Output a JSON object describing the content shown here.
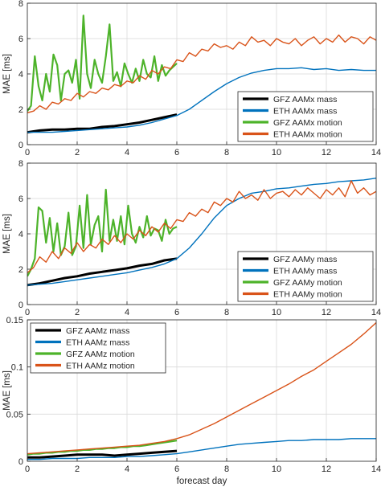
{
  "colors": {
    "gfz_mass": "#000000",
    "eth_mass": "#0072BD",
    "gfz_motion": "#4DB32A",
    "eth_motion": "#D95319",
    "grid": "#d9d9d9",
    "axis": "#262626"
  },
  "chart_data": [
    {
      "type": "line",
      "ylabel": "MAE [ms]",
      "xlabel": "",
      "xlim": [
        0,
        14
      ],
      "ylim": [
        0,
        8
      ],
      "xticks": [
        0,
        2,
        4,
        6,
        8,
        10,
        12,
        14
      ],
      "yticks": [
        0,
        2,
        4,
        6,
        8
      ],
      "grid": true,
      "legend_position": "bottom-right",
      "series": [
        {
          "name": "GFZ AAMx mass",
          "color_key": "gfz_mass",
          "width": 3,
          "x": [
            0,
            0.5,
            1,
            1.5,
            2,
            2.5,
            3,
            3.5,
            4,
            4.5,
            5,
            5.5,
            6
          ],
          "y": [
            0.7,
            0.8,
            0.85,
            0.85,
            0.9,
            0.9,
            1.0,
            1.05,
            1.15,
            1.25,
            1.4,
            1.55,
            1.7
          ]
        },
        {
          "name": "ETH AAMx mass",
          "color_key": "eth_mass",
          "width": 1.4,
          "x": [
            0,
            0.5,
            1,
            1.5,
            2,
            2.5,
            3,
            3.5,
            4,
            4.5,
            5,
            5.5,
            6,
            6.5,
            7,
            7.5,
            8,
            8.5,
            9,
            9.5,
            10,
            10.5,
            11,
            11.5,
            12,
            12.5,
            13,
            13.5,
            14
          ],
          "y": [
            0.7,
            0.7,
            0.7,
            0.75,
            0.8,
            0.85,
            0.9,
            0.95,
            1.0,
            1.1,
            1.25,
            1.45,
            1.65,
            2.0,
            2.5,
            3.0,
            3.45,
            3.8,
            4.05,
            4.2,
            4.3,
            4.3,
            4.35,
            4.25,
            4.3,
            4.2,
            4.25,
            4.2,
            4.2
          ]
        },
        {
          "name": "GFZ AAMx motion",
          "color_key": "gfz_motion",
          "width": 2.2,
          "x": [
            0,
            0.15,
            0.3,
            0.45,
            0.6,
            0.75,
            0.9,
            1.05,
            1.2,
            1.35,
            1.5,
            1.65,
            1.8,
            1.95,
            2.1,
            2.25,
            2.4,
            2.55,
            2.7,
            2.85,
            3.0,
            3.15,
            3.3,
            3.45,
            3.6,
            3.75,
            3.9,
            4.05,
            4.2,
            4.35,
            4.5,
            4.65,
            4.8,
            4.95,
            5.1,
            5.25,
            5.4,
            5.55,
            5.7,
            5.85,
            6.0
          ],
          "y": [
            1.9,
            2.2,
            5.0,
            3.3,
            2.5,
            4.0,
            3.0,
            5.1,
            4.5,
            2.5,
            4.0,
            4.2,
            3.5,
            4.8,
            2.6,
            7.3,
            4.0,
            3.2,
            4.8,
            4.0,
            3.5,
            5.0,
            6.8,
            3.6,
            4.1,
            3.3,
            4.6,
            4.0,
            3.5,
            4.3,
            3.6,
            4.8,
            4.0,
            3.8,
            5.0,
            3.6,
            4.5,
            3.9,
            4.2,
            4.4,
            4.6
          ]
        },
        {
          "name": "ETH AAMx motion",
          "color_key": "eth_motion",
          "width": 1.4,
          "x": [
            0,
            0.25,
            0.5,
            0.75,
            1.0,
            1.25,
            1.5,
            1.75,
            2.0,
            2.25,
            2.5,
            2.75,
            3.0,
            3.25,
            3.5,
            3.75,
            4.0,
            4.25,
            4.5,
            4.75,
            5.0,
            5.25,
            5.5,
            5.75,
            6.0,
            6.25,
            6.5,
            6.75,
            7.0,
            7.25,
            7.5,
            7.75,
            8.0,
            8.25,
            8.5,
            8.75,
            9.0,
            9.25,
            9.5,
            9.75,
            10.0,
            10.25,
            10.5,
            10.75,
            11.0,
            11.25,
            11.5,
            11.75,
            12.0,
            12.25,
            12.5,
            12.75,
            13.0,
            13.25,
            13.5,
            13.75,
            14.0
          ],
          "y": [
            1.8,
            1.9,
            2.2,
            2.0,
            2.4,
            2.3,
            2.6,
            2.5,
            2.9,
            2.7,
            3.0,
            2.9,
            3.2,
            3.1,
            3.4,
            3.3,
            3.6,
            3.5,
            3.9,
            3.7,
            4.2,
            4.0,
            4.4,
            4.3,
            4.8,
            4.7,
            5.2,
            5.0,
            5.4,
            5.3,
            5.7,
            5.5,
            5.6,
            5.4,
            5.8,
            5.6,
            6.1,
            5.8,
            5.9,
            5.6,
            6.0,
            5.8,
            5.7,
            6.0,
            5.6,
            5.9,
            6.1,
            5.7,
            6.0,
            5.8,
            6.2,
            5.8,
            6.1,
            6.0,
            5.7,
            6.1,
            5.9
          ]
        }
      ]
    },
    {
      "type": "line",
      "ylabel": "MAE [ms]",
      "xlabel": "",
      "xlim": [
        0,
        14
      ],
      "ylim": [
        0,
        8
      ],
      "xticks": [
        0,
        2,
        4,
        6,
        8,
        10,
        12,
        14
      ],
      "yticks": [
        0,
        2,
        4,
        6,
        8
      ],
      "grid": true,
      "legend_position": "bottom-right",
      "series": [
        {
          "name": "GFZ AAMy mass",
          "color_key": "gfz_mass",
          "width": 3,
          "x": [
            0,
            0.5,
            1,
            1.5,
            2,
            2.5,
            3,
            3.5,
            4,
            4.5,
            5,
            5.5,
            6
          ],
          "y": [
            1.1,
            1.2,
            1.35,
            1.5,
            1.6,
            1.75,
            1.85,
            1.95,
            2.05,
            2.2,
            2.3,
            2.5,
            2.6
          ]
        },
        {
          "name": "ETH AAMy mass",
          "color_key": "eth_mass",
          "width": 1.4,
          "x": [
            0,
            0.5,
            1,
            1.5,
            2,
            2.5,
            3,
            3.5,
            4,
            4.5,
            5,
            5.5,
            6,
            6.5,
            7,
            7.5,
            8,
            8.5,
            9,
            9.5,
            10,
            10.5,
            11,
            11.5,
            12,
            12.5,
            13,
            13.5,
            14
          ],
          "y": [
            1.1,
            1.15,
            1.2,
            1.3,
            1.4,
            1.5,
            1.6,
            1.7,
            1.8,
            1.95,
            2.1,
            2.3,
            2.6,
            3.2,
            4.0,
            4.9,
            5.6,
            6.0,
            6.3,
            6.4,
            6.55,
            6.6,
            6.7,
            6.8,
            6.85,
            6.95,
            7.0,
            7.05,
            7.15
          ]
        },
        {
          "name": "GFZ AAMy motion",
          "color_key": "gfz_motion",
          "width": 2.2,
          "x": [
            0,
            0.15,
            0.3,
            0.45,
            0.6,
            0.75,
            0.9,
            1.05,
            1.2,
            1.35,
            1.5,
            1.65,
            1.8,
            1.95,
            2.1,
            2.25,
            2.4,
            2.55,
            2.7,
            2.85,
            3.0,
            3.15,
            3.3,
            3.45,
            3.6,
            3.75,
            3.9,
            4.05,
            4.2,
            4.35,
            4.5,
            4.65,
            4.8,
            4.95,
            5.1,
            5.25,
            5.4,
            5.55,
            5.7,
            5.85,
            6.0
          ],
          "y": [
            1.6,
            2.0,
            2.6,
            5.5,
            5.3,
            3.5,
            4.9,
            3.0,
            4.6,
            2.8,
            3.3,
            5.2,
            2.8,
            3.3,
            5.6,
            3.2,
            6.2,
            3.4,
            4.5,
            5.0,
            3.0,
            6.5,
            3.6,
            4.8,
            3.6,
            5.0,
            3.4,
            5.6,
            4.0,
            3.5,
            4.4,
            3.8,
            5.0,
            3.9,
            4.3,
            4.2,
            3.6,
            4.8,
            4.0,
            4.3,
            4.4
          ]
        },
        {
          "name": "ETH AAMy motion",
          "color_key": "eth_motion",
          "width": 1.4,
          "x": [
            0,
            0.25,
            0.5,
            0.75,
            1.0,
            1.25,
            1.5,
            1.75,
            2.0,
            2.25,
            2.5,
            2.75,
            3.0,
            3.25,
            3.5,
            3.75,
            4.0,
            4.25,
            4.5,
            4.75,
            5.0,
            5.25,
            5.5,
            5.75,
            6.0,
            6.25,
            6.5,
            6.75,
            7.0,
            7.25,
            7.5,
            7.75,
            8.0,
            8.25,
            8.5,
            8.75,
            9.0,
            9.25,
            9.5,
            9.75,
            10.0,
            10.25,
            10.5,
            10.75,
            11.0,
            11.25,
            11.5,
            11.75,
            12.0,
            12.25,
            12.5,
            12.75,
            13.0,
            13.25,
            13.5,
            13.75,
            14.0
          ],
          "y": [
            1.8,
            2.1,
            2.7,
            2.4,
            3.0,
            2.6,
            3.2,
            2.9,
            3.5,
            3.0,
            3.4,
            3.2,
            3.7,
            3.4,
            3.9,
            3.5,
            4.0,
            3.7,
            4.2,
            3.9,
            4.4,
            4.1,
            4.6,
            4.3,
            4.8,
            4.7,
            5.2,
            5.0,
            5.4,
            5.2,
            5.8,
            5.6,
            6.0,
            5.8,
            6.4,
            6.0,
            6.2,
            5.9,
            6.5,
            6.0,
            6.3,
            6.4,
            6.1,
            6.5,
            6.2,
            6.6,
            6.3,
            6.0,
            6.5,
            6.2,
            6.6,
            6.1,
            7.0,
            6.3,
            6.6,
            6.2,
            6.4
          ]
        }
      ]
    },
    {
      "type": "line",
      "ylabel": "MAE [ms]",
      "xlabel": "forecast day",
      "xlim": [
        0,
        14
      ],
      "ylim": [
        0,
        0.15
      ],
      "xticks": [
        0,
        2,
        4,
        6,
        8,
        10,
        12,
        14
      ],
      "yticks": [
        0,
        0.05,
        0.1,
        0.15
      ],
      "ytick_labels": [
        "0",
        "0.05",
        "0.1",
        "0.15"
      ],
      "grid": true,
      "legend_position": "top-left",
      "series": [
        {
          "name": "GFZ AAMz mass",
          "color_key": "gfz_mass",
          "width": 3,
          "x": [
            0,
            0.5,
            1,
            1.5,
            2,
            2.5,
            3,
            3.5,
            4,
            4.5,
            5,
            5.5,
            6
          ],
          "y": [
            0.004,
            0.004,
            0.005,
            0.006,
            0.007,
            0.007,
            0.007,
            0.006,
            0.007,
            0.008,
            0.009,
            0.01,
            0.011
          ]
        },
        {
          "name": "ETH AAMz mass",
          "color_key": "eth_mass",
          "width": 1.4,
          "x": [
            0,
            0.5,
            1,
            1.5,
            2,
            2.5,
            3,
            3.5,
            4,
            4.5,
            5,
            5.5,
            6,
            6.5,
            7,
            7.5,
            8,
            8.5,
            9,
            9.5,
            10,
            10.5,
            11,
            11.5,
            12,
            12.5,
            13,
            13.5,
            14
          ],
          "y": [
            0.002,
            0.002,
            0.003,
            0.003,
            0.003,
            0.004,
            0.004,
            0.004,
            0.005,
            0.005,
            0.006,
            0.007,
            0.008,
            0.01,
            0.012,
            0.014,
            0.016,
            0.018,
            0.019,
            0.02,
            0.021,
            0.022,
            0.022,
            0.023,
            0.023,
            0.023,
            0.024,
            0.024,
            0.024
          ]
        },
        {
          "name": "GFZ AAMz motion",
          "color_key": "gfz_motion",
          "width": 2.2,
          "x": [
            0,
            0.25,
            0.5,
            0.75,
            1.0,
            1.25,
            1.5,
            1.75,
            2.0,
            2.25,
            2.5,
            2.75,
            3.0,
            3.25,
            3.5,
            3.75,
            4.0,
            4.25,
            4.5,
            4.75,
            5.0,
            5.25,
            5.5,
            5.75,
            6.0
          ],
          "y": [
            0.007,
            0.008,
            0.008,
            0.009,
            0.009,
            0.01,
            0.01,
            0.011,
            0.011,
            0.012,
            0.012,
            0.013,
            0.013,
            0.014,
            0.014,
            0.015,
            0.015,
            0.016,
            0.016,
            0.017,
            0.018,
            0.019,
            0.02,
            0.021,
            0.022
          ]
        },
        {
          "name": "ETH AAMz motion",
          "color_key": "eth_motion",
          "width": 1.4,
          "x": [
            0,
            0.5,
            1,
            1.5,
            2,
            2.5,
            3,
            3.5,
            4,
            4.5,
            5,
            5.5,
            6,
            6.5,
            7,
            7.5,
            8,
            8.5,
            9,
            9.5,
            10,
            10.5,
            11,
            11.5,
            12,
            12.5,
            13,
            13.5,
            14
          ],
          "y": [
            0.008,
            0.009,
            0.01,
            0.011,
            0.012,
            0.013,
            0.014,
            0.015,
            0.016,
            0.017,
            0.019,
            0.021,
            0.024,
            0.028,
            0.034,
            0.04,
            0.047,
            0.054,
            0.061,
            0.068,
            0.075,
            0.082,
            0.09,
            0.097,
            0.106,
            0.115,
            0.124,
            0.135,
            0.147
          ]
        }
      ]
    }
  ]
}
